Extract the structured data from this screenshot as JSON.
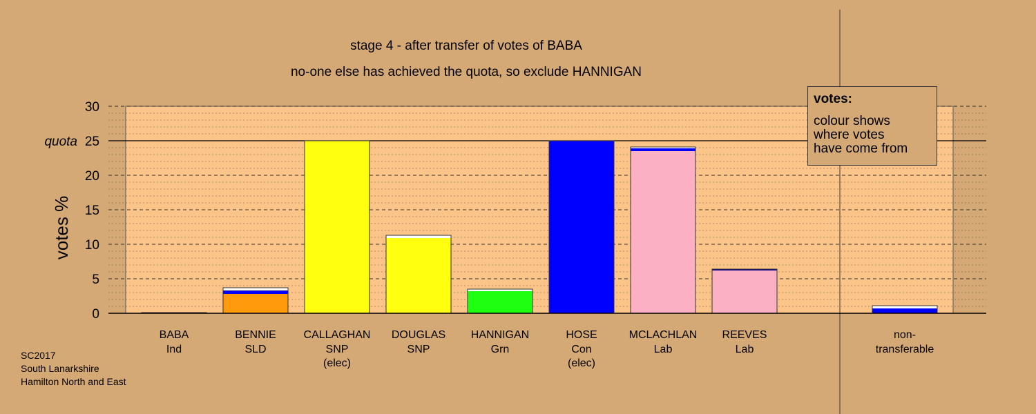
{
  "header": {
    "title": "stage 4 - after transfer of votes of BABA",
    "subtitle": "no-one else has achieved the quota, so exclude HANNIGAN"
  },
  "footer": {
    "line1": "SC2017",
    "line2": "South Lanarkshire",
    "line3": "Hamilton North and East"
  },
  "legend": {
    "title": "votes:",
    "body": "colour shows\nwhere votes\nhave come from"
  },
  "colors": {
    "background": "#d5a975",
    "plot_area": "#fbc58a",
    "ind": "#d5a975",
    "sld": "#ff9a0c",
    "snp": "#ffff0f",
    "grn": "#1fff12",
    "con": "#0000ff",
    "lab": "#fbb0c3",
    "nontransferable": "#0000ff",
    "white_transfer": "#ffffff",
    "navy_transfer": "#000088"
  },
  "chart_data": {
    "type": "bar",
    "title": "stage 4 - after transfer of votes of BABA",
    "subtitle": "no-one else has achieved the quota, so exclude HANNIGAN",
    "ylabel": "votes %",
    "ylim": [
      0,
      30
    ],
    "yticks": [
      "0",
      "5",
      "10",
      "15",
      "20",
      "25",
      "30"
    ],
    "quota": 25,
    "quota_label": "quota",
    "grid": "dashed",
    "categories": [
      {
        "name": "BABA",
        "party": "Ind",
        "note": "",
        "total": 0.1,
        "segments": [
          {
            "from": "first preference",
            "value": 0.1,
            "color": "#d5a975"
          }
        ]
      },
      {
        "name": "BENNIE",
        "party": "SLD",
        "note": "",
        "total": 3.7,
        "segments": [
          {
            "from": "first preference",
            "value": 2.8,
            "color": "#ff9a0c"
          },
          {
            "from": "Con transfer",
            "value": 0.4,
            "color": "#0000ff"
          },
          {
            "from": "navy transfer",
            "value": 0.1,
            "color": "#000088"
          },
          {
            "from": "white transfer",
            "value": 0.4,
            "color": "#ffffff"
          }
        ]
      },
      {
        "name": "CALLAGHAN",
        "party": "SNP",
        "note": "(elec)",
        "total": 25,
        "segments": [
          {
            "from": "first preference",
            "value": 25,
            "color": "#ffff0f"
          }
        ]
      },
      {
        "name": "DOUGLAS",
        "party": "SNP",
        "note": "",
        "total": 11.3,
        "segments": [
          {
            "from": "first preference",
            "value": 10.9,
            "color": "#ffff0f"
          },
          {
            "from": "white transfer",
            "value": 0.4,
            "color": "#ffffff"
          }
        ]
      },
      {
        "name": "HANNIGAN",
        "party": "Grn",
        "note": "",
        "total": 3.5,
        "segments": [
          {
            "from": "first preference",
            "value": 3.2,
            "color": "#1fff12"
          },
          {
            "from": "white transfer",
            "value": 0.3,
            "color": "#ffffff"
          }
        ]
      },
      {
        "name": "HOSE",
        "party": "Con",
        "note": "(elec)",
        "total": 25,
        "segments": [
          {
            "from": "first preference",
            "value": 25,
            "color": "#0000ff"
          }
        ]
      },
      {
        "name": "MCLACHLAN",
        "party": "Lab",
        "note": "",
        "total": 24.1,
        "segments": [
          {
            "from": "first preference",
            "value": 23.5,
            "color": "#fbb0c3"
          },
          {
            "from": "Con transfer",
            "value": 0.4,
            "color": "#0000ff"
          },
          {
            "from": "white transfer",
            "value": 0.2,
            "color": "#ffffff"
          }
        ]
      },
      {
        "name": "REEVES",
        "party": "Lab",
        "note": "",
        "total": 6.4,
        "segments": [
          {
            "from": "first preference",
            "value": 6.2,
            "color": "#fbb0c3"
          },
          {
            "from": "navy transfer",
            "value": 0.2,
            "color": "#000088"
          }
        ]
      }
    ],
    "nontransferable": {
      "label": "non-",
      "label2": "transferable",
      "total": 1.1,
      "segments": [
        {
          "from": "Con transfer",
          "value": 0.7,
          "color": "#0000ff"
        },
        {
          "from": "white transfer",
          "value": 0.4,
          "color": "#ffffff"
        }
      ]
    }
  }
}
